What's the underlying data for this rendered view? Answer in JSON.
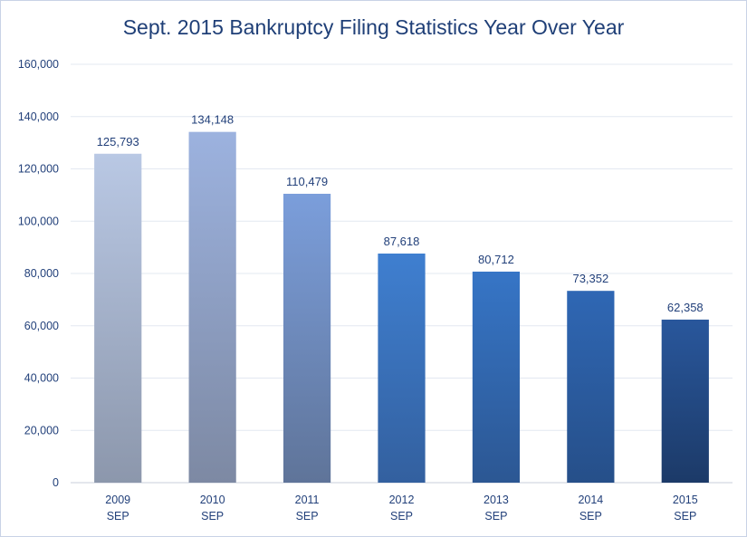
{
  "chart_data": {
    "type": "bar",
    "title": "Sept. 2015 Bankruptcy Filing Statistics Year Over Year",
    "xlabel": "",
    "ylabel": "",
    "categories": [
      [
        "2009",
        "SEP"
      ],
      [
        "2010",
        "SEP"
      ],
      [
        "2011",
        "SEP"
      ],
      [
        "2012",
        "SEP"
      ],
      [
        "2013",
        "SEP"
      ],
      [
        "2014",
        "SEP"
      ],
      [
        "2015",
        "SEP"
      ]
    ],
    "values": [
      125793,
      134148,
      110479,
      87618,
      80712,
      73352,
      62358
    ],
    "data_labels": [
      "125,793",
      "134,148",
      "110,479",
      "87,618",
      "80,712",
      "73,352",
      "62,358"
    ],
    "ylim": [
      0,
      160000
    ],
    "yticks": [
      0,
      20000,
      40000,
      60000,
      80000,
      100000,
      120000,
      140000,
      160000
    ],
    "ytick_labels": [
      "0",
      "20,000",
      "40,000",
      "60,000",
      "80,000",
      "100,000",
      "120,000",
      "140,000",
      "160,000"
    ],
    "grid": true,
    "legend": "none",
    "bar_colors": [
      {
        "top": "#b9c8e4",
        "bottom": "#8c97ac"
      },
      {
        "top": "#9cb2df",
        "bottom": "#7d89a3"
      },
      {
        "top": "#7b9edb",
        "bottom": "#5f7499"
      },
      {
        "top": "#3f7fd0",
        "bottom": "#33609f"
      },
      {
        "top": "#3675c6",
        "bottom": "#2c5793"
      },
      {
        "top": "#2f67b4",
        "bottom": "#264f89"
      },
      {
        "top": "#29579c",
        "bottom": "#1c3a68"
      }
    ]
  }
}
